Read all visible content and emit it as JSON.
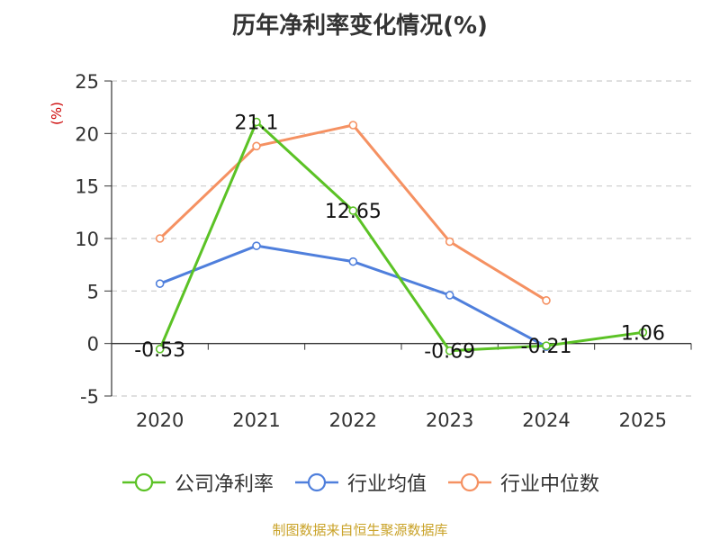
{
  "title": "历年净利率变化情况(%)",
  "source": "制图数据来自恒生聚源数据库",
  "chart_data": {
    "type": "line",
    "title": "历年净利率变化情况(%)",
    "ylabel": "(%)",
    "xlabel": "",
    "categories": [
      "2020",
      "2021",
      "2022",
      "2023",
      "2024",
      "2025"
    ],
    "ylim": [
      -5,
      25
    ],
    "yticks": [
      -5,
      0,
      5,
      10,
      15,
      20,
      25
    ],
    "grid": true,
    "legend": "bottom",
    "series": [
      {
        "name": "公司净利率",
        "color": "#5bc225",
        "values": [
          -0.53,
          21.1,
          12.65,
          -0.69,
          -0.21,
          1.06
        ],
        "labels": [
          "-0.53",
          "21.1",
          "12.65",
          "-0.69",
          "-0.21",
          "1.06"
        ]
      },
      {
        "name": "行业均值",
        "color": "#4f7fdc",
        "values": [
          5.7,
          9.3,
          7.8,
          4.6,
          -0.3,
          null
        ]
      },
      {
        "name": "行业中位数",
        "color": "#f59162",
        "values": [
          10.0,
          18.8,
          20.8,
          9.7,
          4.1,
          null
        ]
      }
    ]
  }
}
